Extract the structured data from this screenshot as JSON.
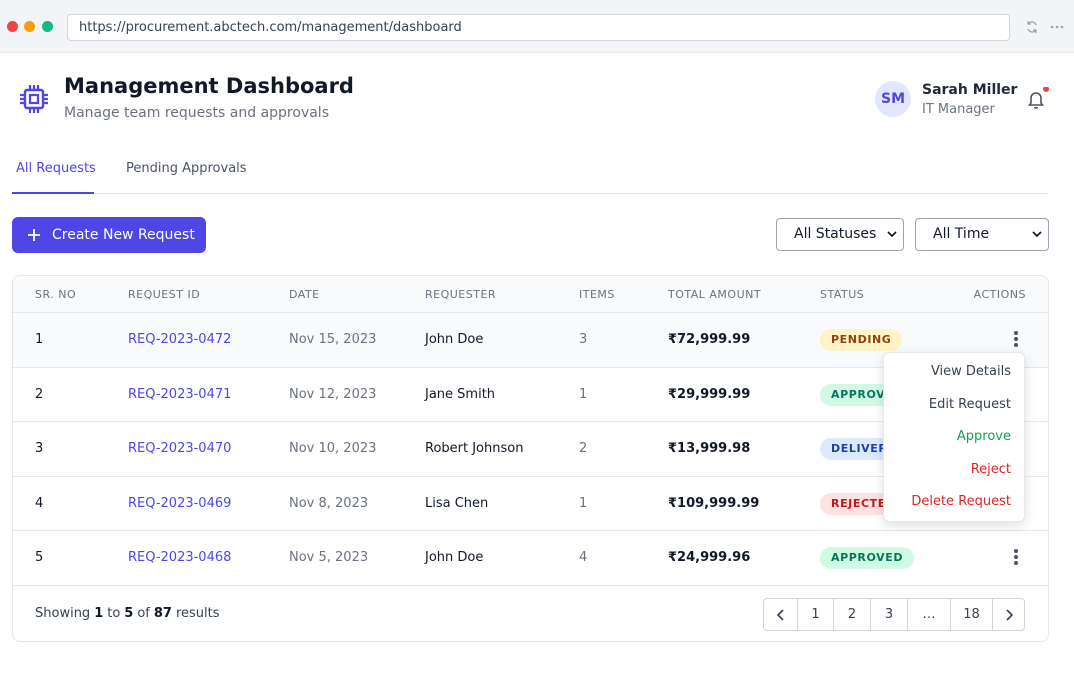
{
  "browser": {
    "url": "https://procurement.abctech.com/management/dashboard"
  },
  "header": {
    "title": "Management Dashboard",
    "subtitle": "Manage team requests and approvals",
    "user": {
      "initials": "SM",
      "name": "Sarah Miller",
      "role": "IT Manager"
    }
  },
  "tabs": [
    "All Requests",
    "Pending Approvals"
  ],
  "toolbar": {
    "create_button": "Create New Request",
    "status_filter": "All Statuses",
    "time_filter": "All Time"
  },
  "table": {
    "columns": [
      "SR. NO",
      "REQUEST ID",
      "DATE",
      "REQUESTER",
      "ITEMS",
      "TOTAL AMOUNT",
      "STATUS",
      "ACTIONS"
    ],
    "rows": [
      [
        "1",
        "REQ-2023-0472",
        "Nov 15, 2023",
        "John Doe",
        "3",
        "₹72,999.99",
        "PENDING"
      ],
      [
        "2",
        "REQ-2023-0471",
        "Nov 12, 2023",
        "Jane Smith",
        "1",
        "₹29,999.99",
        "APPROVED"
      ],
      [
        "3",
        "REQ-2023-0470",
        "Nov 10, 2023",
        "Robert Johnson",
        "2",
        "₹13,999.98",
        "DELIVERED"
      ],
      [
        "4",
        "REQ-2023-0469",
        "Nov 8, 2023",
        "Lisa Chen",
        "1",
        "₹109,999.99",
        "REJECTED"
      ],
      [
        "5",
        "REQ-2023-0468",
        "Nov 5, 2023",
        "John Doe",
        "4",
        "₹24,999.96",
        "APPROVED"
      ]
    ],
    "status_colors": [
      {
        "bg": "#fef3c7",
        "fg": "#92400e"
      },
      {
        "bg": "#d1fae5",
        "fg": "#047857"
      },
      {
        "bg": "#dbeafe",
        "fg": "#1e40af"
      },
      {
        "bg": "#fee2e2",
        "fg": "#b91c1c"
      },
      {
        "bg": "#d1fae5",
        "fg": "#047857"
      }
    ]
  },
  "menu": [
    {
      "label": "View Details",
      "color": "#374151"
    },
    {
      "label": "Edit Request",
      "color": "#374151"
    },
    {
      "label": "Approve",
      "color": "#16a34a"
    },
    {
      "label": "Reject",
      "color": "#dc2626"
    },
    {
      "label": "Delete Request",
      "color": "#dc2626"
    }
  ],
  "footer": {
    "showing": [
      "Showing",
      "1",
      "to",
      "5",
      "of",
      "87",
      "results"
    ]
  },
  "pagination": [
    "1",
    "2",
    "3",
    "…",
    "18"
  ]
}
